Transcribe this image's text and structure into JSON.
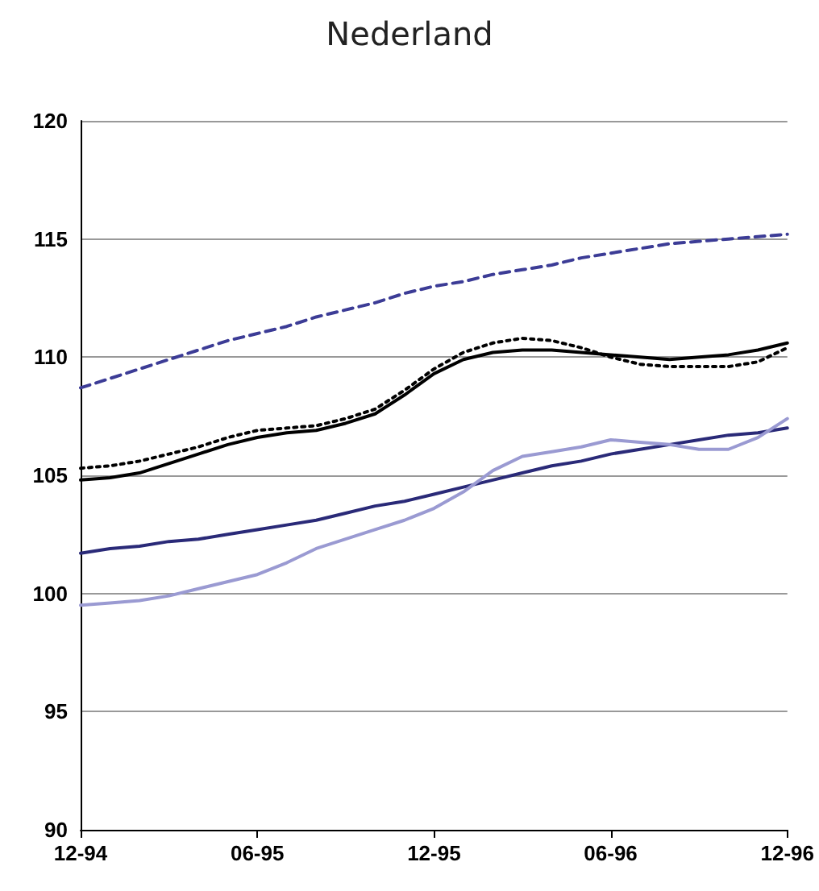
{
  "chart_data": {
    "type": "line",
    "title": "Nederland",
    "categories": [
      "12-94",
      null,
      null,
      null,
      null,
      null,
      "06-95",
      null,
      null,
      null,
      null,
      null,
      "12-95",
      null,
      null,
      null,
      null,
      null,
      "06-96",
      null,
      null,
      null,
      null,
      null,
      "12-96"
    ],
    "ylim": [
      90,
      120
    ],
    "yticks": [
      90,
      95,
      100,
      105,
      110,
      115,
      120
    ],
    "grid": "y",
    "marker": "none",
    "series": [
      {
        "color": "#3c3c96",
        "line_style": "dashed",
        "values": [
          108.7,
          109.1,
          109.5,
          109.9,
          110.3,
          110.7,
          111.0,
          111.3,
          111.7,
          112.0,
          112.3,
          112.7,
          113.0,
          113.2,
          113.5,
          113.7,
          113.9,
          114.2,
          114.4,
          114.6,
          114.8,
          114.9,
          115.0,
          115.1,
          115.2
        ]
      },
      {
        "color": "#000000",
        "line_style": "dotted",
        "values": [
          105.3,
          105.4,
          105.6,
          105.9,
          106.2,
          106.6,
          106.9,
          107.0,
          107.1,
          107.4,
          107.8,
          108.6,
          109.5,
          110.2,
          110.6,
          110.8,
          110.7,
          110.4,
          110.0,
          109.7,
          109.6,
          109.6,
          109.6,
          109.8,
          110.4
        ]
      },
      {
        "color": "#000000",
        "line_style": "solid",
        "values": [
          104.8,
          104.9,
          105.1,
          105.5,
          105.9,
          106.3,
          106.6,
          106.8,
          106.9,
          107.2,
          107.6,
          108.4,
          109.3,
          109.9,
          110.2,
          110.3,
          110.3,
          110.2,
          110.1,
          110.0,
          109.9,
          110.0,
          110.1,
          110.3,
          110.6
        ]
      },
      {
        "color": "#2a2a78",
        "line_style": "solid",
        "values": [
          101.7,
          101.9,
          102.0,
          102.2,
          102.3,
          102.5,
          102.7,
          102.9,
          103.1,
          103.4,
          103.7,
          103.9,
          104.2,
          104.5,
          104.8,
          105.1,
          105.4,
          105.6,
          105.9,
          106.1,
          106.3,
          106.5,
          106.7,
          106.8,
          107.0
        ]
      },
      {
        "color": "#9a9ad2",
        "line_style": "solid",
        "values": [
          99.5,
          99.6,
          99.7,
          99.9,
          100.2,
          100.5,
          100.8,
          101.3,
          101.9,
          102.3,
          102.7,
          103.1,
          103.6,
          104.3,
          105.2,
          105.8,
          106.0,
          106.2,
          106.5,
          106.4,
          106.3,
          106.1,
          106.1,
          106.6,
          107.4
        ]
      }
    ]
  }
}
